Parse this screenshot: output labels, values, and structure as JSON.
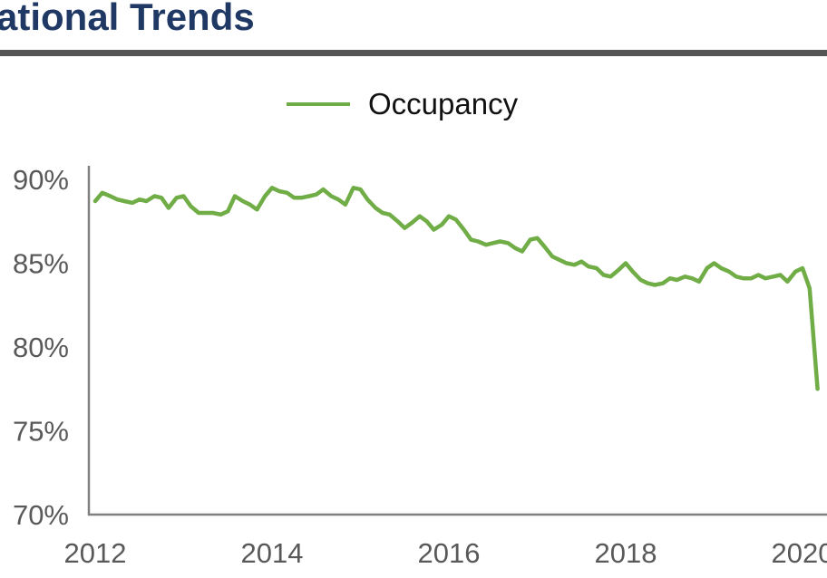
{
  "header": {
    "title": "ational Trends"
  },
  "colors": {
    "title": "#1f3864",
    "rule": "#555555",
    "series": "#70ad47",
    "axis": "#808080"
  },
  "chart_data": {
    "type": "line",
    "title": "",
    "xlabel": "",
    "ylabel": "",
    "legend": "top-center",
    "grid": false,
    "x_tick_labels": [
      "2012",
      "2014",
      "2016",
      "2018",
      "2020"
    ],
    "y_tick_labels": [
      "70%",
      "75%",
      "80%",
      "85%",
      "90%"
    ],
    "y_ticks": [
      70,
      75,
      80,
      85,
      90
    ],
    "xlim": [
      2012,
      2020.17
    ],
    "ylim": [
      70,
      90
    ],
    "series": [
      {
        "name": "Occupancy",
        "x": [
          2012.0,
          2012.08,
          2012.17,
          2012.25,
          2012.33,
          2012.42,
          2012.5,
          2012.58,
          2012.67,
          2012.75,
          2012.83,
          2012.92,
          2013.0,
          2013.08,
          2013.17,
          2013.25,
          2013.33,
          2013.42,
          2013.5,
          2013.58,
          2013.67,
          2013.75,
          2013.83,
          2013.92,
          2014.0,
          2014.08,
          2014.17,
          2014.25,
          2014.33,
          2014.42,
          2014.5,
          2014.58,
          2014.67,
          2014.75,
          2014.83,
          2014.92,
          2015.0,
          2015.08,
          2015.17,
          2015.25,
          2015.33,
          2015.42,
          2015.5,
          2015.58,
          2015.67,
          2015.75,
          2015.83,
          2015.92,
          2016.0,
          2016.08,
          2016.17,
          2016.25,
          2016.33,
          2016.42,
          2016.5,
          2016.58,
          2016.67,
          2016.75,
          2016.83,
          2016.92,
          2017.0,
          2017.08,
          2017.17,
          2017.25,
          2017.33,
          2017.42,
          2017.5,
          2017.58,
          2017.67,
          2017.75,
          2017.83,
          2017.92,
          2018.0,
          2018.08,
          2018.17,
          2018.25,
          2018.33,
          2018.42,
          2018.5,
          2018.58,
          2018.67,
          2018.75,
          2018.83,
          2018.92,
          2019.0,
          2019.08,
          2019.17,
          2019.25,
          2019.33,
          2019.42,
          2019.5,
          2019.58,
          2019.67,
          2019.75,
          2019.83,
          2019.92,
          2020.0,
          2020.08,
          2020.17
        ],
        "values": [
          88.7,
          89.2,
          89.0,
          88.8,
          88.7,
          88.6,
          88.8,
          88.7,
          89.0,
          88.9,
          88.3,
          88.9,
          89.0,
          88.4,
          88.0,
          88.0,
          88.0,
          87.9,
          88.1,
          89.0,
          88.7,
          88.5,
          88.2,
          89.0,
          89.5,
          89.3,
          89.2,
          88.9,
          88.9,
          89.0,
          89.1,
          89.4,
          89.0,
          88.8,
          88.5,
          89.5,
          89.4,
          88.8,
          88.3,
          88.0,
          87.9,
          87.5,
          87.1,
          87.4,
          87.8,
          87.5,
          87.0,
          87.3,
          87.8,
          87.6,
          87.0,
          86.4,
          86.3,
          86.1,
          86.2,
          86.3,
          86.2,
          85.9,
          85.7,
          86.4,
          86.5,
          86.0,
          85.4,
          85.2,
          85.0,
          84.9,
          85.1,
          84.8,
          84.7,
          84.3,
          84.2,
          84.6,
          85.0,
          84.5,
          84.0,
          83.8,
          83.7,
          83.8,
          84.1,
          84.0,
          84.2,
          84.1,
          83.9,
          84.7,
          85.0,
          84.7,
          84.5,
          84.2,
          84.1,
          84.1,
          84.3,
          84.1,
          84.2,
          84.3,
          83.9,
          84.5,
          84.7,
          83.5,
          77.5
        ]
      }
    ]
  }
}
